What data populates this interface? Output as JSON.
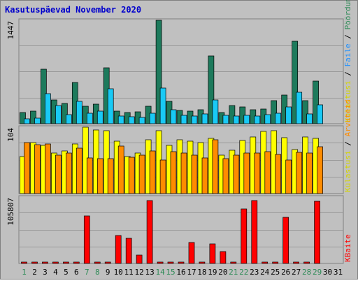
{
  "chart_data": {
    "type": "bar",
    "title": "Kasutuspäevad November 2020",
    "categories": [
      "1",
      "2",
      "3",
      "4",
      "5",
      "6",
      "7",
      "8",
      "9",
      "10",
      "11",
      "12",
      "13",
      "14",
      "15",
      "16",
      "17",
      "18",
      "19",
      "20",
      "21",
      "22",
      "23",
      "24",
      "25",
      "26",
      "27",
      "28",
      "29",
      "30",
      "31"
    ],
    "weekend_days": [
      "1",
      "7",
      "8",
      "14",
      "15",
      "21",
      "22",
      "28",
      "29"
    ],
    "panels": [
      {
        "name": "top",
        "ymax_label": "1447",
        "ymax": 1447,
        "right_label": [
          "Pöördumisi",
          "Faile",
          "Külastusi"
        ],
        "right_label_colors": [
          "#2e8b57",
          "#1e90ff",
          "#d4d400"
        ],
        "series": [
          {
            "name": "Pöördumisi",
            "color": "#1d7a5c",
            "values": [
              160,
              180,
              765,
              330,
              285,
              580,
              245,
              270,
              785,
              175,
              160,
              165,
              240,
              1447,
              310,
              185,
              175,
              200,
              950,
              160,
              255,
              235,
              195,
              210,
              320,
              405,
              1150,
              320,
              600,
              null,
              null
            ]
          },
          {
            "name": "Faile",
            "color": "#19c9f5",
            "values": [
              65,
              80,
              425,
              250,
              130,
              310,
              150,
              180,
              490,
              110,
              95,
              90,
              145,
              500,
              195,
              120,
              105,
              140,
              335,
              115,
              105,
              120,
              110,
              130,
              150,
              235,
              440,
              135,
              260,
              null,
              null
            ]
          }
        ]
      },
      {
        "name": "middle",
        "ymax_label": "104",
        "ymax": 104,
        "right_label": [
          "Arvuteid",
          "Külastusi"
        ],
        "right_label_colors": [
          "#ff8c00",
          "#d4d400"
        ],
        "series": [
          {
            "name": "Külastusi",
            "color": "#ffff00",
            "values": [
              58,
              80,
              76,
              64,
              67,
              78,
              104,
              100,
              99,
              82,
              58,
              64,
              84,
              98,
              76,
              84,
              82,
              80,
              87,
              60,
              68,
              83,
              89,
              97,
              98,
              88,
              69,
              89,
              86,
              null,
              null
            ]
          },
          {
            "name": "Arvuteid",
            "color": "#ff8c00",
            "values": [
              80,
              77,
              78,
              60,
              63,
              71,
              56,
              55,
              55,
              74,
              57,
              60,
              67,
              52,
              66,
              63,
              60,
              56,
              84,
              55,
              60,
              64,
              64,
              66,
              61,
              52,
              65,
              64,
              73,
              null,
              null
            ]
          }
        ]
      },
      {
        "name": "bottom",
        "ymax_label": "105807",
        "ymax": 105807,
        "right_label": [
          "KBaite"
        ],
        "right_label_colors": [
          "#ff0000"
        ],
        "series": [
          {
            "name": "KBaite",
            "color": "#ff0000",
            "values": [
              800,
              800,
              800,
              800,
              800,
              800,
              76000,
              800,
              800,
              44000,
              40000,
              13000,
              100000,
              1800,
              800,
              2200,
              33000,
              800,
              31000,
              19000,
              800,
              87000,
              100000,
              800,
              800,
              74000,
              800,
              800,
              99000,
              null,
              null
            ]
          }
        ]
      }
    ]
  }
}
